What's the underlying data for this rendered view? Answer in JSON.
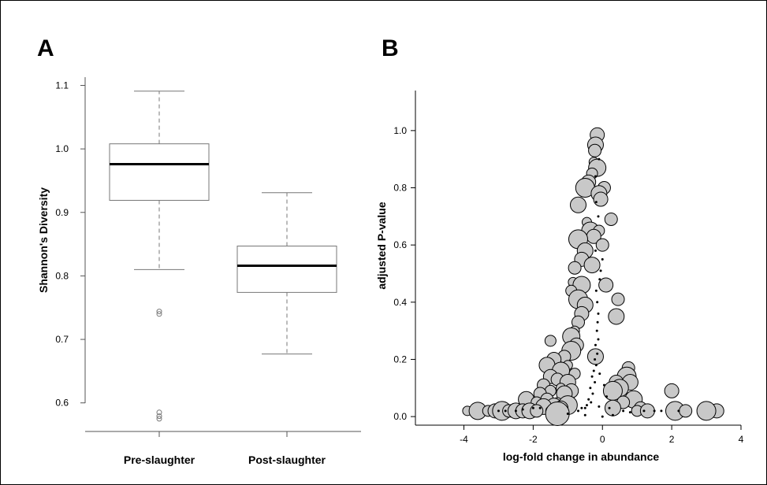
{
  "chart_data": [
    {
      "panel_label": "A",
      "type": "box",
      "xlabel": "",
      "ylabel": "Shannon's Diversity",
      "ylim": [
        0.555,
        1.113
      ],
      "yticks": [
        0.6,
        0.7,
        0.8,
        0.9,
        1.0,
        1.1
      ],
      "ytick_labels": [
        "0.6",
        "0.7",
        "0.8",
        "0.9",
        "1.0",
        "1.1"
      ],
      "categories": [
        "Pre-slaughter",
        "Post-slaughter"
      ],
      "boxes": [
        {
          "whisker_low": 0.81,
          "q1": 0.919,
          "median": 0.976,
          "q3": 1.008,
          "whisker_high": 1.091,
          "outliers": [
            0.744,
            0.74,
            0.585,
            0.579,
            0.575
          ]
        },
        {
          "whisker_low": 0.677,
          "q1": 0.774,
          "median": 0.816,
          "q3": 0.847,
          "whisker_high": 0.931,
          "outliers": []
        }
      ],
      "grid": false
    },
    {
      "panel_label": "B",
      "type": "scatter",
      "xlabel": "log-fold change in abundance",
      "ylabel": "adjusted P-value",
      "xlim": [
        -5.4,
        4.0
      ],
      "ylim": [
        -0.03,
        1.14
      ],
      "xticks": [
        -4,
        -2,
        0,
        2,
        4
      ],
      "xtick_labels": [
        "-4",
        "-2",
        "0",
        "2",
        "4"
      ],
      "yticks": [
        0.0,
        0.2,
        0.4,
        0.6,
        0.8,
        1.0
      ],
      "ytick_labels": [
        "0.0",
        "0.2",
        "0.4",
        "0.6",
        "0.8",
        "1.0"
      ],
      "grid": false,
      "marker_color": "#c8c8c8",
      "series": [
        {
          "marker": "large-circle",
          "points": [
            [
              -0.15,
              0.985
            ],
            [
              -0.2,
              0.95
            ],
            [
              -0.22,
              0.93
            ],
            [
              -0.25,
              0.89
            ],
            [
              -0.15,
              0.87
            ],
            [
              -0.3,
              0.85
            ],
            [
              -0.4,
              0.82
            ],
            [
              -0.5,
              0.8
            ],
            [
              0.05,
              0.8
            ],
            [
              -0.1,
              0.78
            ],
            [
              -0.05,
              0.76
            ],
            [
              -0.7,
              0.74
            ],
            [
              0.25,
              0.69
            ],
            [
              -0.45,
              0.68
            ],
            [
              -0.35,
              0.65
            ],
            [
              -0.1,
              0.65
            ],
            [
              -0.25,
              0.63
            ],
            [
              -0.7,
              0.62
            ],
            [
              0.0,
              0.6
            ],
            [
              -0.5,
              0.58
            ],
            [
              -0.6,
              0.55
            ],
            [
              -0.3,
              0.53
            ],
            [
              -0.8,
              0.52
            ],
            [
              -0.85,
              0.47
            ],
            [
              -0.6,
              0.46
            ],
            [
              -0.9,
              0.44
            ],
            [
              0.1,
              0.46
            ],
            [
              -0.7,
              0.41
            ],
            [
              0.45,
              0.41
            ],
            [
              -0.5,
              0.39
            ],
            [
              -0.6,
              0.36
            ],
            [
              0.4,
              0.35
            ],
            [
              -0.7,
              0.33
            ],
            [
              -0.8,
              0.3
            ],
            [
              -0.9,
              0.28
            ],
            [
              -1.5,
              0.265
            ],
            [
              -0.75,
              0.25
            ],
            [
              -0.9,
              0.23
            ],
            [
              -1.1,
              0.21
            ],
            [
              -0.2,
              0.21
            ],
            [
              -1.4,
              0.2
            ],
            [
              -1.6,
              0.18
            ],
            [
              0.75,
              0.17
            ],
            [
              -1.0,
              0.18
            ],
            [
              -1.2,
              0.16
            ],
            [
              -0.8,
              0.15
            ],
            [
              -1.5,
              0.14
            ],
            [
              0.7,
              0.14
            ],
            [
              -1.3,
              0.13
            ],
            [
              -1.0,
              0.12
            ],
            [
              0.4,
              0.12
            ],
            [
              0.8,
              0.12
            ],
            [
              -1.7,
              0.11
            ],
            [
              -1.2,
              0.1
            ],
            [
              0.5,
              0.1
            ],
            [
              -1.5,
              0.09
            ],
            [
              -0.9,
              0.09
            ],
            [
              0.3,
              0.09
            ],
            [
              -1.8,
              0.08
            ],
            [
              -1.1,
              0.08
            ],
            [
              2.0,
              0.09
            ],
            [
              -2.2,
              0.06
            ],
            [
              -1.6,
              0.06
            ],
            [
              -1.3,
              0.05
            ],
            [
              0.9,
              0.06
            ],
            [
              -1.9,
              0.05
            ],
            [
              -1.4,
              0.04
            ],
            [
              -1.0,
              0.04
            ],
            [
              0.6,
              0.05
            ],
            [
              -1.7,
              0.035
            ],
            [
              -1.2,
              0.03
            ],
            [
              0.3,
              0.03
            ],
            [
              1.1,
              0.03
            ],
            [
              -3.9,
              0.02
            ],
            [
              -3.6,
              0.02
            ],
            [
              -3.3,
              0.02
            ],
            [
              -3.1,
              0.02
            ],
            [
              -2.9,
              0.02
            ],
            [
              -2.7,
              0.02
            ],
            [
              -2.5,
              0.02
            ],
            [
              -2.3,
              0.02
            ],
            [
              -2.1,
              0.02
            ],
            [
              -1.9,
              0.02
            ],
            [
              -1.5,
              0.02
            ],
            [
              -1.3,
              0.015
            ],
            [
              1.0,
              0.02
            ],
            [
              1.3,
              0.02
            ],
            [
              2.1,
              0.02
            ],
            [
              2.4,
              0.02
            ],
            [
              3.0,
              0.02
            ],
            [
              3.3,
              0.02
            ],
            [
              -1.4,
              0.005
            ]
          ]
        },
        {
          "marker": "small-dot",
          "points": [
            [
              -0.18,
              0.44
            ],
            [
              -0.15,
              0.4
            ],
            [
              -0.12,
              0.36
            ],
            [
              -0.14,
              0.33
            ],
            [
              -0.16,
              0.3
            ],
            [
              -0.12,
              0.27
            ],
            [
              -0.2,
              0.25
            ],
            [
              -0.15,
              0.22
            ],
            [
              -0.22,
              0.2
            ],
            [
              -0.18,
              0.18
            ],
            [
              -0.25,
              0.16
            ],
            [
              -0.3,
              0.14
            ],
            [
              -0.22,
              0.12
            ],
            [
              -0.35,
              0.1
            ],
            [
              -0.28,
              0.08
            ],
            [
              -0.4,
              0.06
            ],
            [
              -0.33,
              0.05
            ],
            [
              -0.45,
              0.04
            ],
            [
              -0.5,
              0.03
            ],
            [
              0.05,
              0.11
            ],
            [
              -0.08,
              0.15
            ],
            [
              0.12,
              0.07
            ],
            [
              -0.6,
              0.03
            ],
            [
              -0.7,
              0.02
            ],
            [
              -0.1,
              0.035
            ],
            [
              0.2,
              0.03
            ],
            [
              0.6,
              0.02
            ],
            [
              0.8,
              0.015
            ],
            [
              1.2,
              0.02
            ],
            [
              1.5,
              0.02
            ],
            [
              1.7,
              0.02
            ],
            [
              2.2,
              0.02
            ],
            [
              -2.5,
              0.02
            ],
            [
              -2.8,
              0.02
            ],
            [
              -3.0,
              0.02
            ],
            [
              -2.3,
              0.025
            ],
            [
              -2.0,
              0.03
            ],
            [
              -1.8,
              0.03
            ],
            [
              -1.0,
              0.01
            ],
            [
              -0.5,
              0.005
            ],
            [
              0.0,
              0.0
            ],
            [
              0.3,
              0.005
            ],
            [
              -0.05,
              0.51
            ],
            [
              -0.08,
              0.48
            ],
            [
              -0.2,
              0.58
            ],
            [
              -0.12,
              0.7
            ],
            [
              -0.18,
              0.75
            ],
            [
              -0.2,
              0.84
            ],
            [
              -0.1,
              0.9
            ],
            [
              0.0,
              0.55
            ]
          ]
        }
      ]
    }
  ]
}
